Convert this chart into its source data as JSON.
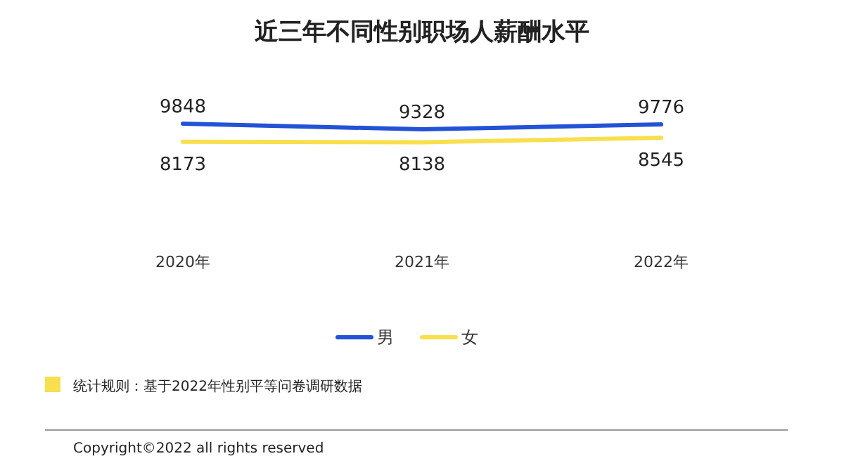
{
  "chart_data": {
    "type": "line",
    "title": "近三年不同性别职场人薪酬水平",
    "categories": [
      "2020年",
      "2021年",
      "2022年"
    ],
    "series": [
      {
        "name": "男",
        "color": "#2352d6",
        "values": [
          9848,
          9328,
          9776
        ]
      },
      {
        "name": "女",
        "color": "#f8df4e",
        "values": [
          8173,
          8138,
          8545
        ]
      }
    ],
    "data_labels": true,
    "legend": "bottom",
    "annotations": [
      "统计规则：基于2022年性别平等问卷调研数据",
      "Copyright©2022 all rights reserved"
    ]
  }
}
